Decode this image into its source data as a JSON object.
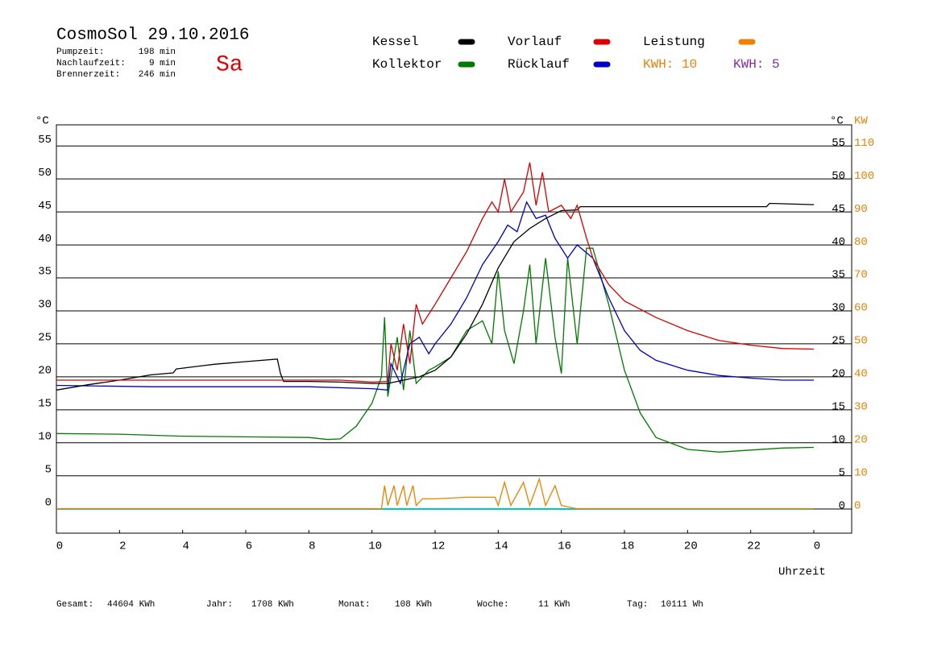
{
  "chart_data": {
    "type": "line",
    "title": "CosmoSol 29.10.2016",
    "day": "Sa",
    "info": [
      [
        "Pumpzeit:",
        "198 min"
      ],
      [
        "Nachlaufzeit:",
        "9 min"
      ],
      [
        "Brennerzeit:",
        "246 min"
      ]
    ],
    "legend_extra": [
      {
        "text": "KWH: 10",
        "color": "#e8820a"
      },
      {
        "text": "KWH: 5",
        "color": "#8a2aa0"
      }
    ],
    "y_label": "°C",
    "y2_label": "°C",
    "y2_unit": "KW",
    "x_label": "Uhrzeit",
    "footer": [
      [
        "Gesamt:",
        "44604 KWh"
      ],
      [
        "Jahr:",
        "1708 KWh"
      ],
      [
        "Monat:",
        "108 KWh"
      ],
      [
        "Woche:",
        "11 KWh"
      ],
      [
        "Tag:",
        "10111 Wh"
      ]
    ],
    "xlim": [
      0,
      25.2
    ],
    "xticks": [
      0,
      2,
      4,
      6,
      8,
      10,
      12,
      14,
      16,
      18,
      20,
      22,
      {
        "value": 24,
        "label": "0"
      }
    ],
    "ylim": [
      -3.7,
      58.2
    ],
    "yticks": [
      0,
      5,
      10,
      15,
      20,
      25,
      30,
      35,
      40,
      45,
      50,
      55
    ],
    "y2lim": [
      -7.4,
      116.4
    ],
    "y2ticks": [
      0,
      10,
      20,
      30,
      40,
      50,
      60,
      70,
      80,
      90,
      100,
      110
    ],
    "grid": true,
    "series": [
      {
        "name": "Kessel",
        "color": "#000000",
        "x": [
          0,
          1,
          2,
          3,
          3.7,
          3.8,
          5,
          6,
          7,
          7.1,
          7.2,
          8,
          9,
          10,
          10.5,
          11,
          11.5,
          12,
          12.5,
          13,
          13.5,
          14,
          14.5,
          15,
          15.5,
          16,
          16.5,
          16.6,
          18,
          20,
          22,
          22.5,
          22.6,
          24
        ],
        "values": [
          18.0,
          18.8,
          19.5,
          20.3,
          20.6,
          21.2,
          21.9,
          22.3,
          22.7,
          20.5,
          19.3,
          19.3,
          19.2,
          19.0,
          19.0,
          19.5,
          20.0,
          21.0,
          23.0,
          26.5,
          31.0,
          36.5,
          40.5,
          42.5,
          44.0,
          45.2,
          45.3,
          45.8,
          45.8,
          45.8,
          45.8,
          45.8,
          46.3,
          46.1
        ]
      },
      {
        "name": "Vorlauf",
        "color": "#d80000",
        "x": [
          0,
          9,
          10,
          10.5,
          10.6,
          10.8,
          11,
          11.2,
          11.4,
          11.6,
          12,
          12.5,
          13,
          13.5,
          13.8,
          14,
          14.2,
          14.4,
          14.8,
          15,
          15.2,
          15.4,
          15.6,
          16,
          16.3,
          16.5,
          16.8,
          17,
          17.5,
          18,
          19,
          20,
          21,
          22,
          23,
          24
        ],
        "values": [
          19.5,
          19.5,
          19.2,
          19.3,
          25,
          21,
          28,
          22,
          31,
          28,
          31,
          35,
          39,
          44,
          46.5,
          45,
          50,
          45,
          48,
          52.5,
          46,
          51,
          45,
          46,
          44,
          46,
          41,
          38,
          34,
          31.5,
          29,
          27,
          25.5,
          24.8,
          24.3,
          24.2
        ]
      },
      {
        "name": "Leistung",
        "color": "#f08000",
        "axis": "y2",
        "x": [
          0,
          10.3,
          10.4,
          10.5,
          10.7,
          10.8,
          11,
          11.1,
          11.3,
          11.4,
          11.6,
          12,
          13,
          13.9,
          14,
          14.2,
          14.4,
          14.8,
          15,
          15.3,
          15.5,
          15.8,
          16,
          16.5,
          24
        ],
        "values": [
          0,
          0,
          7,
          1,
          7,
          1,
          7,
          1,
          7,
          1,
          3,
          3,
          3.5,
          3.5,
          1,
          8,
          1,
          8,
          1,
          9,
          1,
          7,
          1,
          0,
          0
        ]
      },
      {
        "name": "Kollektor",
        "color": "#007a00",
        "x": [
          0,
          2,
          4,
          6,
          8,
          8.6,
          9,
          9.5,
          10,
          10.3,
          10.4,
          10.5,
          10.8,
          11,
          11.2,
          11.4,
          11.8,
          12,
          12.5,
          13,
          13.5,
          13.8,
          14,
          14.2,
          14.5,
          14.8,
          15,
          15.2,
          15.5,
          15.8,
          16,
          16.2,
          16.5,
          16.8,
          17,
          17.5,
          18,
          18.5,
          19,
          20,
          21,
          22,
          23,
          24
        ],
        "values": [
          11.4,
          11.3,
          11.0,
          10.9,
          10.8,
          10.5,
          10.6,
          12.5,
          16,
          20,
          29,
          17,
          26,
          18,
          27,
          19,
          21,
          21.5,
          23,
          27,
          28.5,
          25,
          36,
          27,
          22,
          30,
          37,
          25,
          38,
          26,
          20.5,
          38,
          25,
          39.5,
          39.5,
          31,
          21,
          14.5,
          10.8,
          9,
          8.6,
          8.9,
          9.2,
          9.3
        ]
      },
      {
        "name": "Rücklauf",
        "color": "#0000c8",
        "x": [
          0,
          3,
          6,
          8,
          10,
          10.5,
          10.6,
          10.9,
          11.2,
          11.5,
          11.8,
          12,
          12.5,
          13,
          13.5,
          14,
          14.3,
          14.6,
          14.9,
          15.2,
          15.5,
          15.8,
          16.2,
          16.5,
          17,
          17.5,
          18,
          18.5,
          19,
          20,
          21,
          22,
          23,
          24
        ],
        "values": [
          18.7,
          18.5,
          18.5,
          18.5,
          18.2,
          18.0,
          22,
          19,
          25,
          26,
          23.5,
          25,
          28,
          32,
          37,
          40.5,
          43,
          42,
          46.5,
          44,
          44.5,
          41,
          38,
          40,
          38,
          32,
          27,
          24,
          22.5,
          21,
          20.2,
          19.8,
          19.5,
          19.5
        ]
      }
    ]
  }
}
